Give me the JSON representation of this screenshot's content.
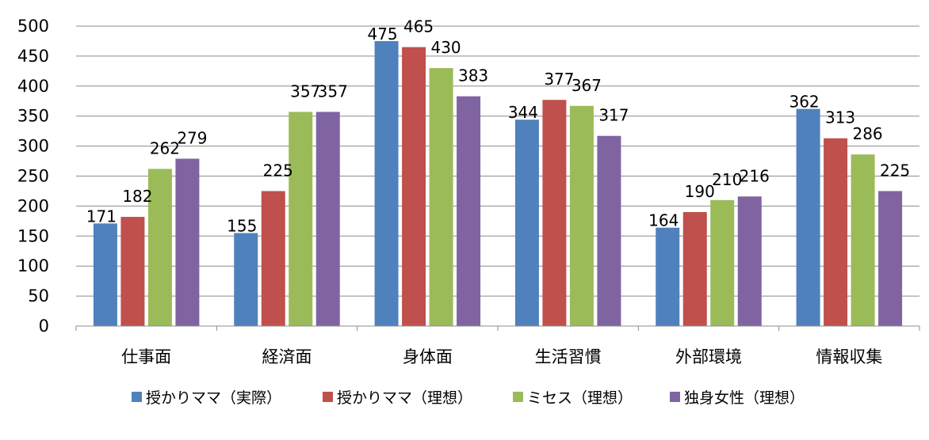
{
  "chart_data": {
    "type": "bar",
    "categories": [
      "仕事面",
      "経済面",
      "身体面",
      "生活習慣",
      "外部環境",
      "情報収集"
    ],
    "series": [
      {
        "name": "授かりママ（実際）",
        "color": "#4F81BD",
        "values": [
          171,
          155,
          475,
          344,
          164,
          362
        ]
      },
      {
        "name": "授かりママ（理想）",
        "color": "#C0504D",
        "values": [
          182,
          225,
          465,
          377,
          190,
          313
        ]
      },
      {
        "name": "ミセス（理想）",
        "color": "#9BBB59",
        "values": [
          262,
          357,
          430,
          367,
          210,
          286
        ]
      },
      {
        "name": "独身女性（理想）",
        "color": "#8064A2",
        "values": [
          279,
          357,
          383,
          317,
          216,
          225
        ]
      }
    ],
    "yticks": [
      0,
      50,
      100,
      150,
      200,
      250,
      300,
      350,
      400,
      450,
      500
    ],
    "ylim": [
      0,
      500
    ],
    "grid": true,
    "legend_position": "bottom"
  }
}
